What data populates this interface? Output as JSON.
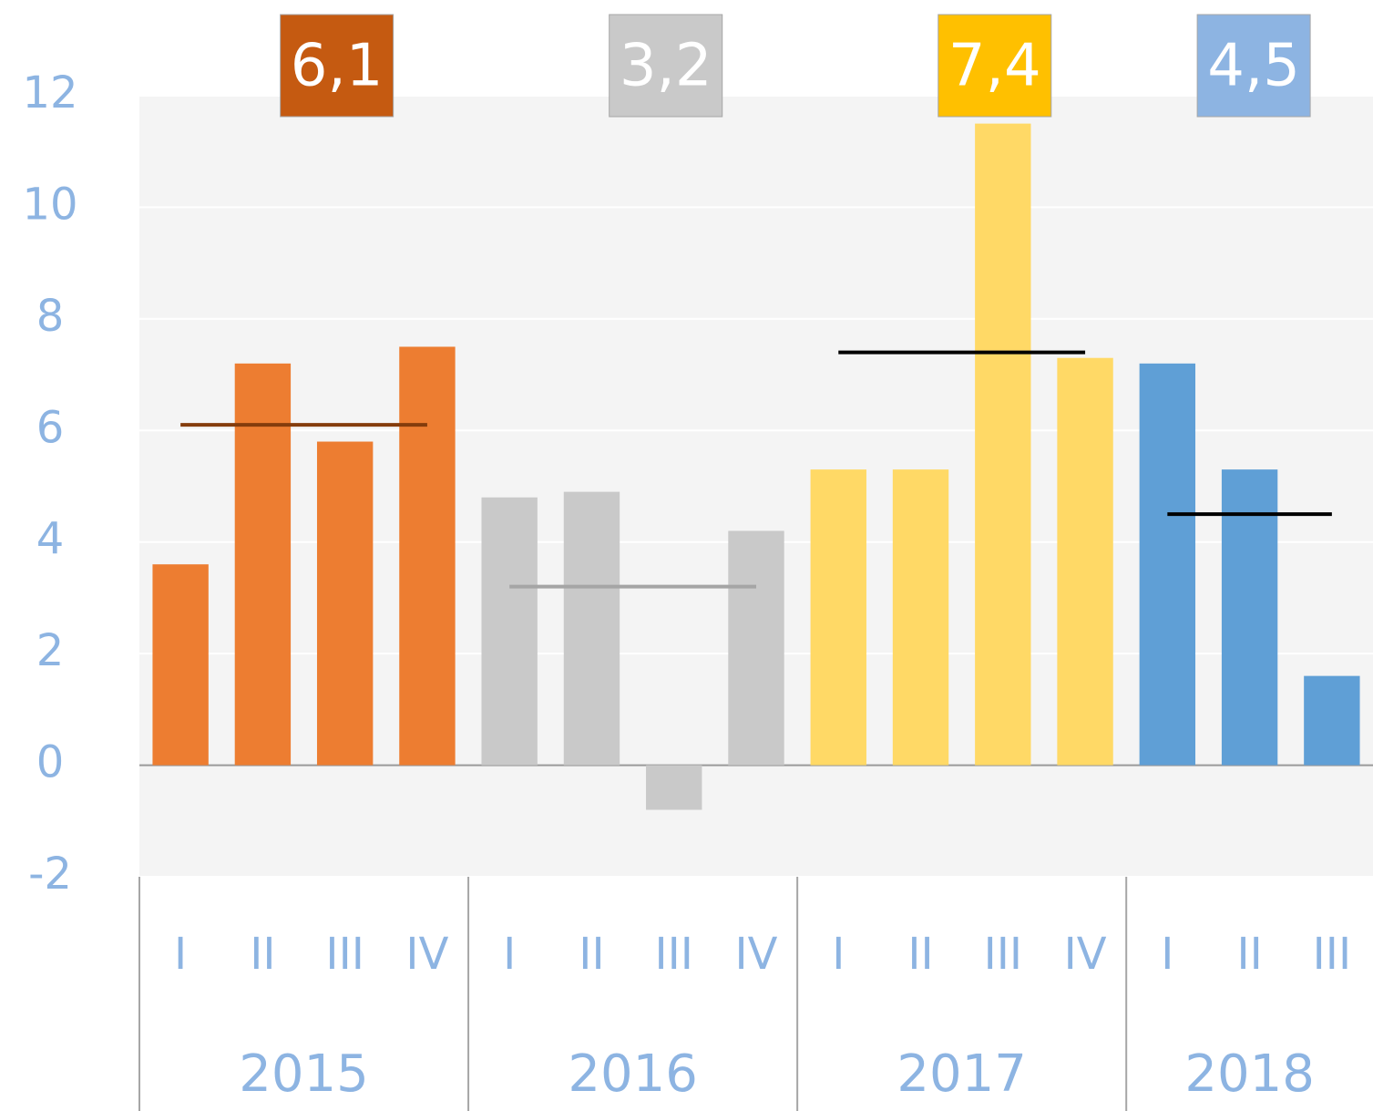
{
  "chart_data": {
    "type": "bar",
    "ylim": [
      -2,
      12
    ],
    "yticks": [
      -2,
      0,
      2,
      4,
      6,
      8,
      10,
      12
    ],
    "grid": true,
    "series": [
      {
        "name": "2015",
        "color": "#ed7d31",
        "categories": [
          "I",
          "II",
          "III",
          "IV"
        ],
        "values": [
          3.6,
          7.2,
          5.8,
          7.5
        ],
        "average": 6.1,
        "average_label": "6,1",
        "average_color": "#843c0c",
        "label_color": "#c55a11"
      },
      {
        "name": "2016",
        "color": "#c9c9c9",
        "categories": [
          "I",
          "II",
          "III",
          "IV"
        ],
        "values": [
          4.8,
          4.9,
          -0.8,
          4.2
        ],
        "average": 3.2,
        "average_label": "3,2",
        "average_color": "#a5a5a5",
        "label_color": "#c9c9c9"
      },
      {
        "name": "2017",
        "color": "#ffd966",
        "categories": [
          "I",
          "II",
          "III",
          "IV"
        ],
        "values": [
          5.3,
          5.3,
          11.5,
          7.3
        ],
        "average": 7.4,
        "average_label": "7,4",
        "average_color": "#000000",
        "label_color": "#ffc000"
      },
      {
        "name": "2018",
        "color": "#5f9fd6",
        "categories": [
          "I",
          "II",
          "III"
        ],
        "values": [
          7.2,
          5.3,
          1.6
        ],
        "average": 4.5,
        "average_label": "4,5",
        "average_color": "#000000",
        "label_color": "#8db4e2"
      }
    ]
  }
}
